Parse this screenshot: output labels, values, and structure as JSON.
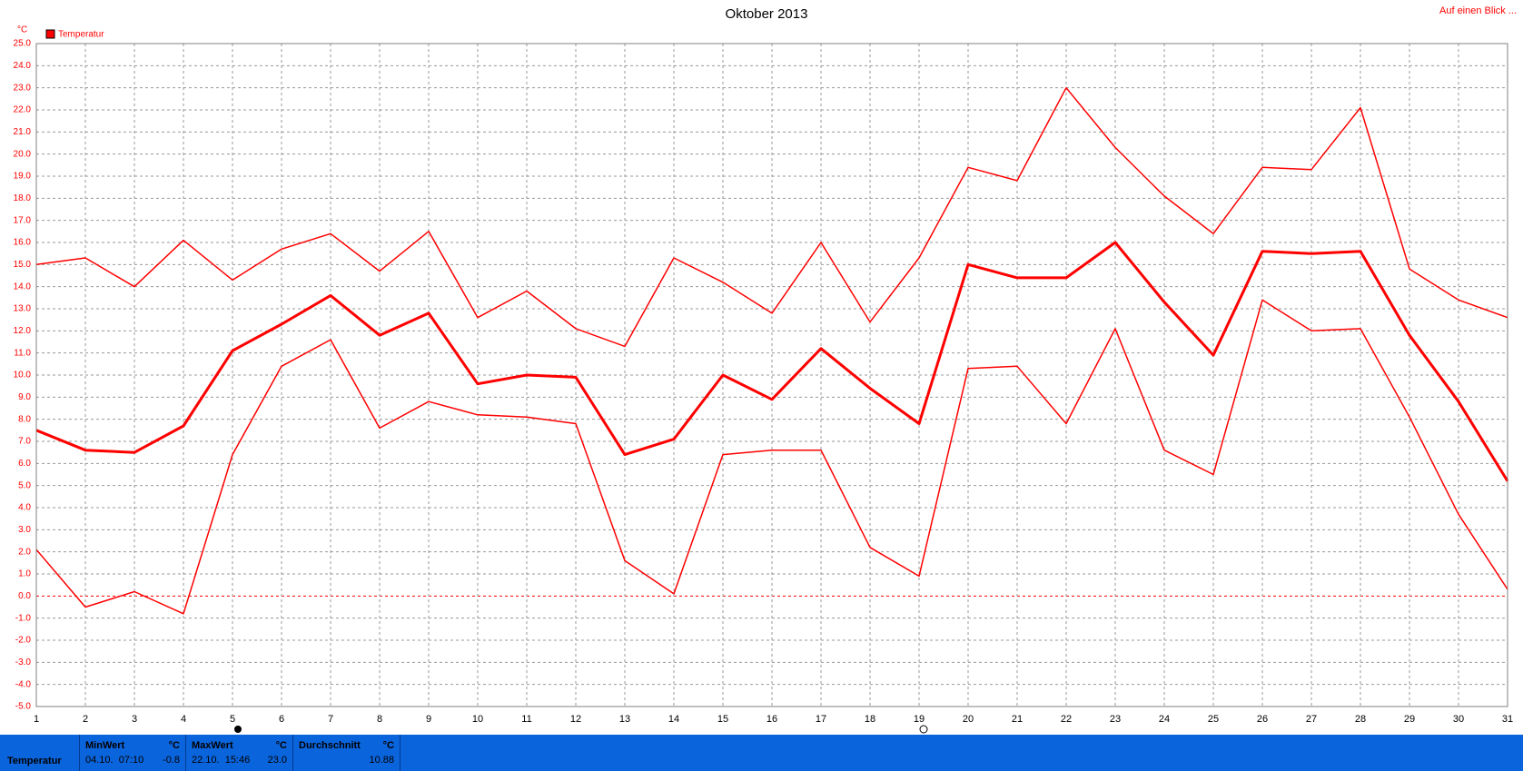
{
  "chart_data": {
    "type": "line",
    "title": "Oktober 2013",
    "unit": "°C",
    "legend": "Temperatur",
    "legend_color": "#ff0000",
    "link": "Auf einen Blick ...",
    "x": [
      1,
      2,
      3,
      4,
      5,
      6,
      7,
      8,
      9,
      10,
      11,
      12,
      13,
      14,
      15,
      16,
      17,
      18,
      19,
      20,
      21,
      22,
      23,
      24,
      25,
      26,
      27,
      28,
      29,
      30,
      31
    ],
    "xlim": [
      1,
      31
    ],
    "xticks": [
      1,
      2,
      3,
      4,
      5,
      6,
      7,
      8,
      9,
      10,
      11,
      12,
      13,
      14,
      15,
      16,
      17,
      18,
      19,
      20,
      21,
      22,
      23,
      24,
      25,
      26,
      27,
      28,
      29,
      30,
      31
    ],
    "ylim": [
      -5,
      25
    ],
    "yticks": [
      {
        "value": -5,
        "label": "-5.0"
      },
      {
        "value": -4,
        "label": "-4.0"
      },
      {
        "value": -3,
        "label": "-3.0"
      },
      {
        "value": -2,
        "label": "-2.0"
      },
      {
        "value": -1,
        "label": "-1.0"
      },
      {
        "value": 0,
        "label": "0.0"
      },
      {
        "value": 1,
        "label": "1.0"
      },
      {
        "value": 2,
        "label": "2.0"
      },
      {
        "value": 3,
        "label": "3.0"
      },
      {
        "value": 4,
        "label": "4.0"
      },
      {
        "value": 5,
        "label": "5.0"
      },
      {
        "value": 6,
        "label": "6.0"
      },
      {
        "value": 7,
        "label": "7.0"
      },
      {
        "value": 8,
        "label": "8.0"
      },
      {
        "value": 9,
        "label": "9.0"
      },
      {
        "value": 10,
        "label": "10.0"
      },
      {
        "value": 11,
        "label": "11.0"
      },
      {
        "value": 12,
        "label": "12.0"
      },
      {
        "value": 13,
        "label": "13.0"
      },
      {
        "value": 14,
        "label": "14.0"
      },
      {
        "value": 15,
        "label": "15.0"
      },
      {
        "value": 16,
        "label": "16.0"
      },
      {
        "value": 17,
        "label": "17.0"
      },
      {
        "value": 18,
        "label": "18.0"
      },
      {
        "value": 19,
        "label": "19.0"
      },
      {
        "value": 20,
        "label": "20.0"
      },
      {
        "value": 21,
        "label": "21.0"
      },
      {
        "value": 22,
        "label": "22.0"
      },
      {
        "value": 23,
        "label": "23.0"
      },
      {
        "value": 24,
        "label": "24.0"
      },
      {
        "value": 25,
        "label": "25.0"
      }
    ],
    "grid": true,
    "series": [
      {
        "color": "#ff0000",
        "linewidth": 1.5,
        "values": [
          15.0,
          15.3,
          14.0,
          16.1,
          14.3,
          15.7,
          16.4,
          14.7,
          16.5,
          12.6,
          13.8,
          12.1,
          11.3,
          15.3,
          14.2,
          12.8,
          16.0,
          12.4,
          15.3,
          19.4,
          18.8,
          23.0,
          20.3,
          18.1,
          16.4,
          19.4,
          19.3,
          22.1,
          14.8,
          13.4,
          12.6
        ]
      },
      {
        "color": "#ff0000",
        "linewidth": 3,
        "values": [
          7.5,
          6.6,
          6.5,
          7.7,
          11.1,
          12.3,
          13.6,
          11.8,
          12.8,
          9.6,
          10.0,
          9.9,
          6.4,
          7.1,
          10.0,
          8.9,
          11.2,
          9.4,
          7.8,
          15.0,
          14.4,
          14.4,
          16.0,
          13.3,
          10.9,
          15.6,
          15.5,
          15.6,
          11.8,
          8.8,
          5.2
        ]
      },
      {
        "color": "#ff0000",
        "linewidth": 1.5,
        "values": [
          2.1,
          -0.5,
          0.2,
          -0.8,
          6.4,
          10.4,
          11.6,
          7.6,
          8.8,
          8.2,
          8.1,
          7.8,
          1.6,
          0.1,
          6.4,
          6.6,
          6.6,
          2.2,
          0.9,
          10.3,
          10.4,
          7.8,
          12.1,
          6.6,
          5.5,
          13.4,
          12.0,
          12.1,
          8.1,
          3.7,
          0.3
        ]
      }
    ]
  },
  "summary": {
    "label": "Temperatur",
    "min": {
      "title": "MinWert",
      "unit": "°C",
      "time": "04.10.  07:10",
      "value": "-0.8"
    },
    "max": {
      "title": "MaxWert",
      "unit": "°C",
      "time": "22.10.  15:46",
      "value": "23.0"
    },
    "avg": {
      "title": "Durchschnitt",
      "unit": "°C",
      "value": "10.88"
    }
  }
}
